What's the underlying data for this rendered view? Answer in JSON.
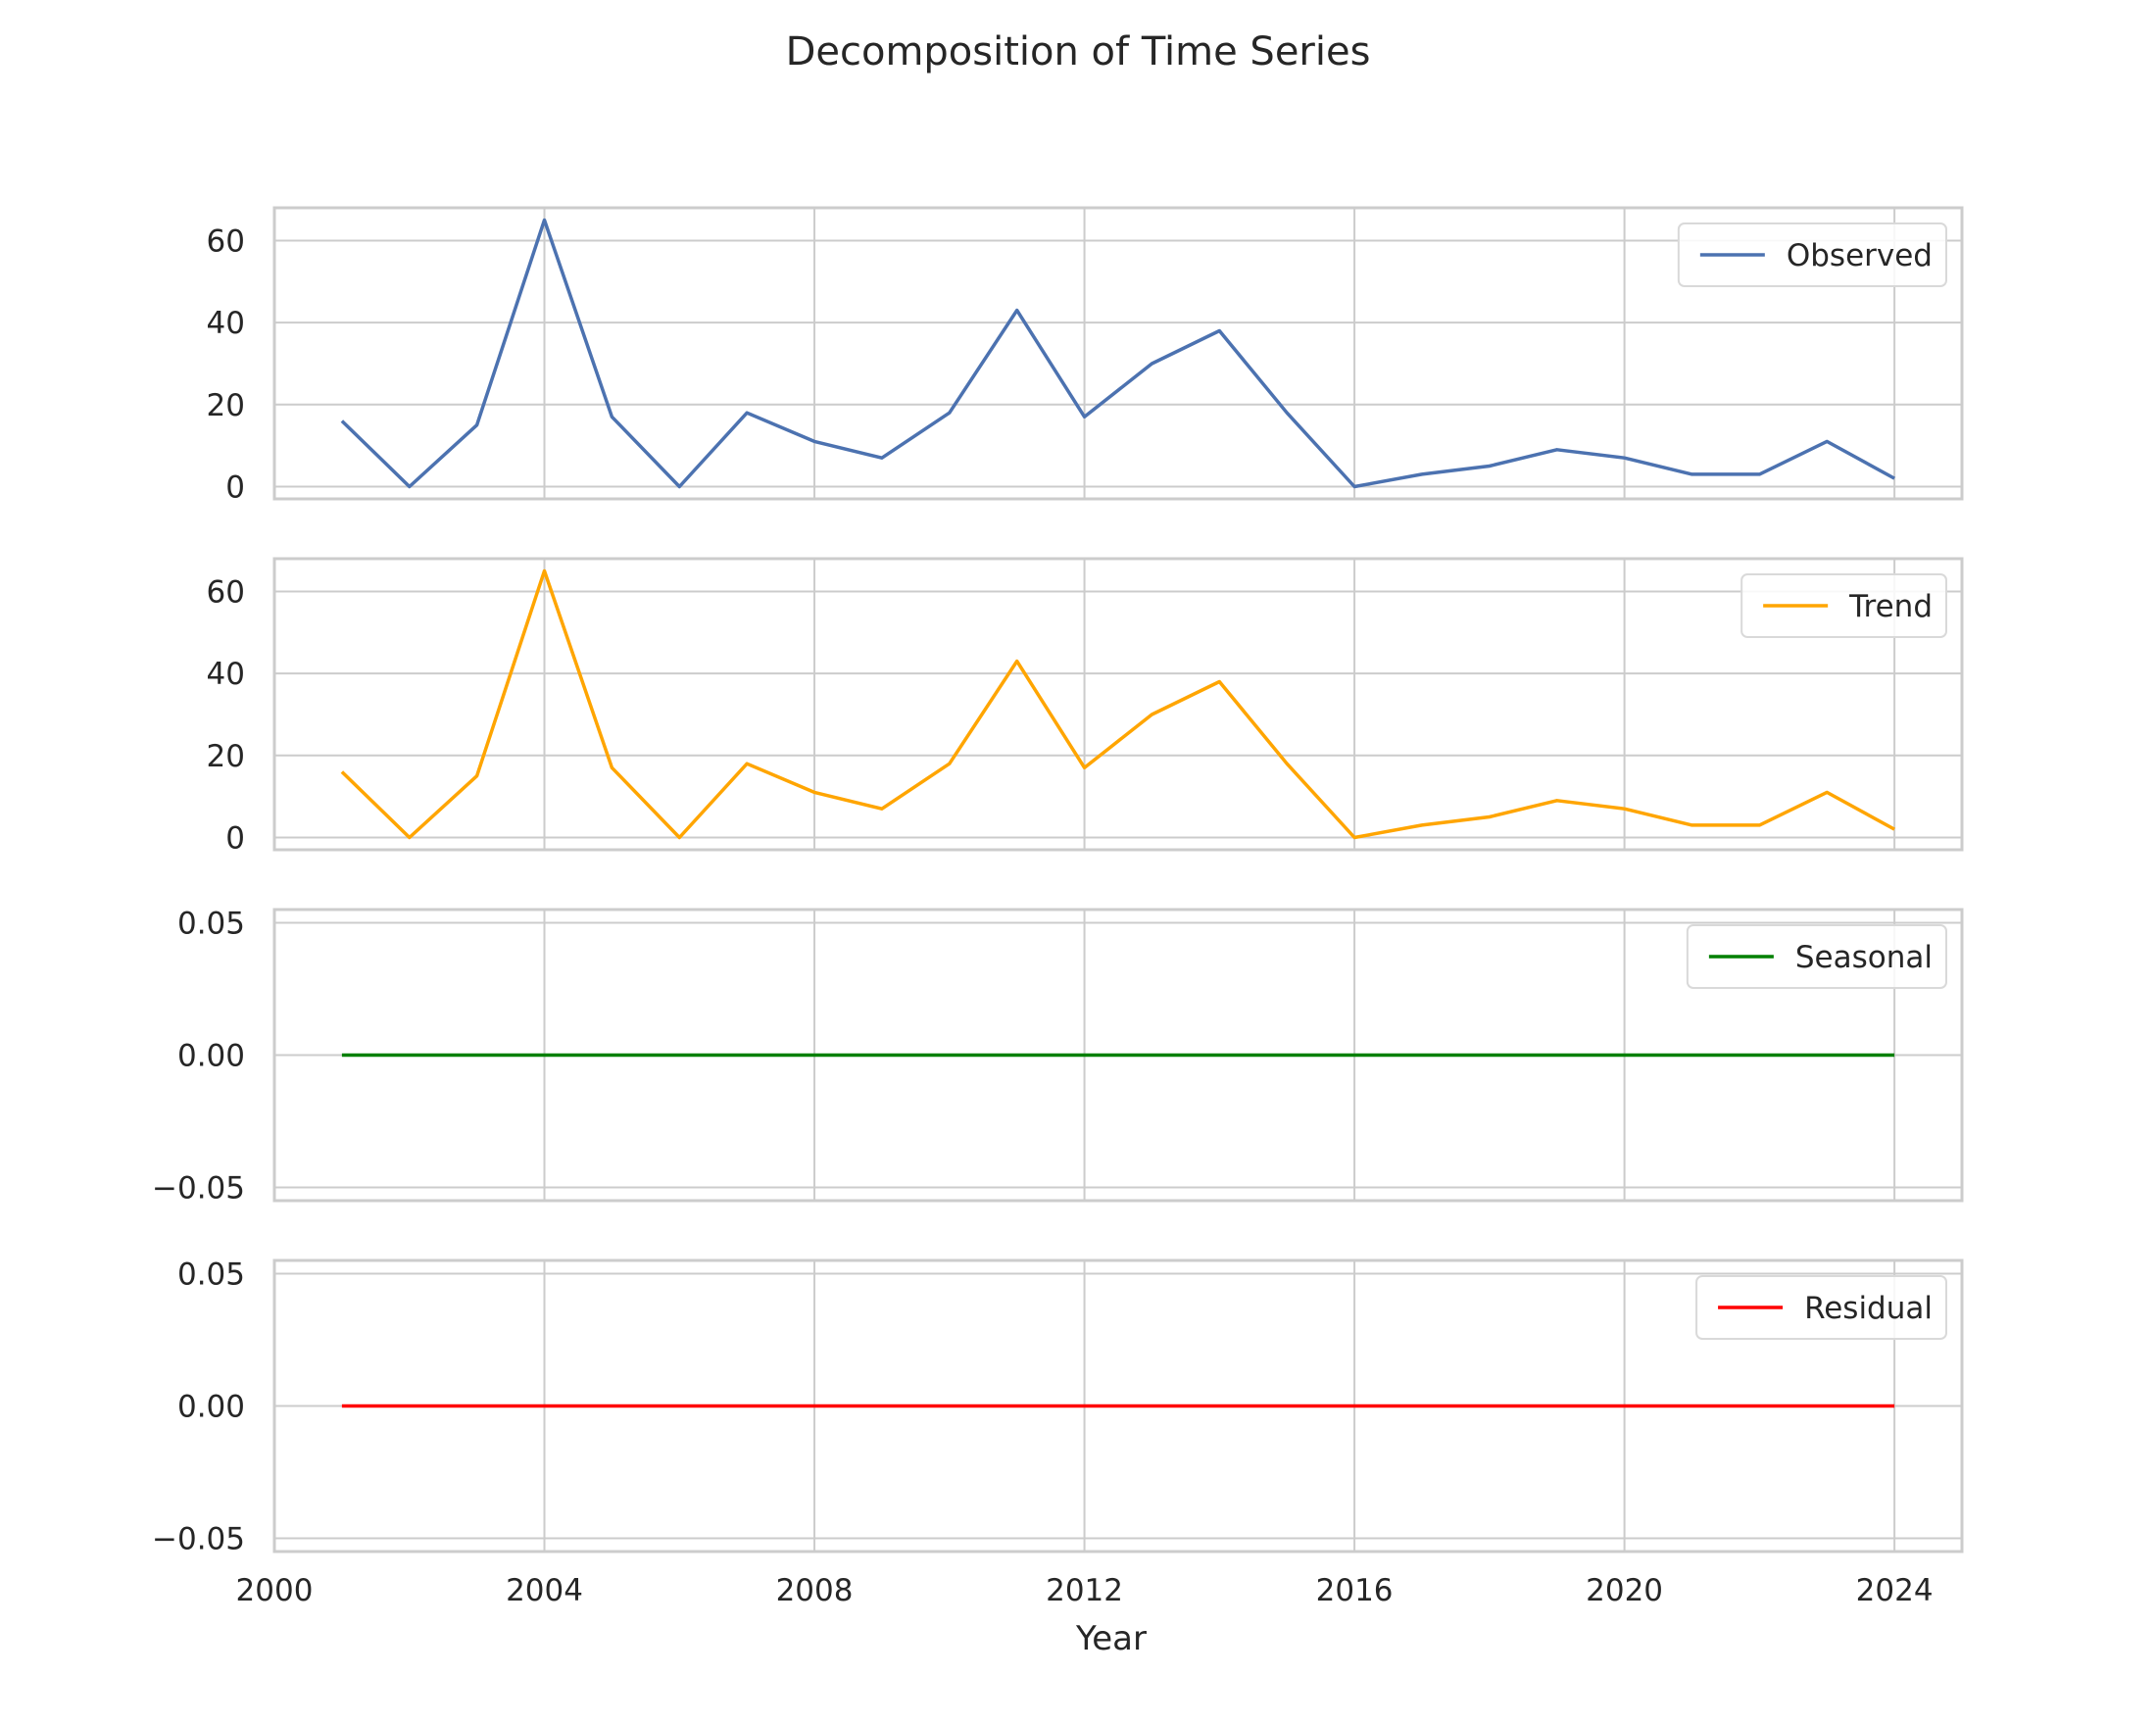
{
  "figure": {
    "title": "Decomposition of Time Series",
    "xlabel": "Year"
  },
  "chart_data": {
    "type": "line",
    "title": "Decomposition of Time Series",
    "xlabel": "Year",
    "x": [
      2001,
      2002,
      2003,
      2004,
      2005,
      2006,
      2007,
      2008,
      2009,
      2010,
      2011,
      2012,
      2013,
      2014,
      2015,
      2016,
      2017,
      2018,
      2019,
      2020,
      2021,
      2022,
      2023,
      2024
    ],
    "xlim": [
      2000,
      2025
    ],
    "xticks": [
      "2000",
      "2004",
      "2008",
      "2012",
      "2016",
      "2020",
      "2024"
    ],
    "grid": true,
    "legend_placement": "top-right",
    "panels": [
      {
        "name": "Observed",
        "color": "#4c72b0",
        "ylim": [
          -3,
          68
        ],
        "yticks": [
          0,
          20,
          40,
          60
        ],
        "ytick_labels": [
          "0",
          "20",
          "40",
          "60"
        ],
        "values": [
          16,
          0,
          15,
          65,
          17,
          0,
          18,
          11,
          7,
          18,
          43,
          17,
          30,
          38,
          18,
          0,
          3,
          5,
          9,
          7,
          3,
          3,
          11,
          2
        ]
      },
      {
        "name": "Trend",
        "color": "#ffa500",
        "ylim": [
          -3,
          68
        ],
        "yticks": [
          0,
          20,
          40,
          60
        ],
        "ytick_labels": [
          "0",
          "20",
          "40",
          "60"
        ],
        "values": [
          16,
          0,
          15,
          65,
          17,
          0,
          18,
          11,
          7,
          18,
          43,
          17,
          30,
          38,
          18,
          0,
          3,
          5,
          9,
          7,
          3,
          3,
          11,
          2
        ]
      },
      {
        "name": "Seasonal",
        "color": "#008000",
        "ylim": [
          -0.055,
          0.055
        ],
        "yticks": [
          -0.05,
          0,
          0.05
        ],
        "ytick_labels": [
          "−0.05",
          "0.00",
          "0.05"
        ],
        "values": [
          0,
          0,
          0,
          0,
          0,
          0,
          0,
          0,
          0,
          0,
          0,
          0,
          0,
          0,
          0,
          0,
          0,
          0,
          0,
          0,
          0,
          0,
          0,
          0
        ]
      },
      {
        "name": "Residual",
        "color": "#ff0000",
        "ylim": [
          -0.055,
          0.055
        ],
        "yticks": [
          -0.05,
          0,
          0.05
        ],
        "ytick_labels": [
          "−0.05",
          "0.00",
          "0.05"
        ],
        "values": [
          0,
          0,
          0,
          0,
          0,
          0,
          0,
          0,
          0,
          0,
          0,
          0,
          0,
          0,
          0,
          0,
          0,
          0,
          0,
          0,
          0,
          0,
          0,
          0
        ]
      }
    ]
  }
}
